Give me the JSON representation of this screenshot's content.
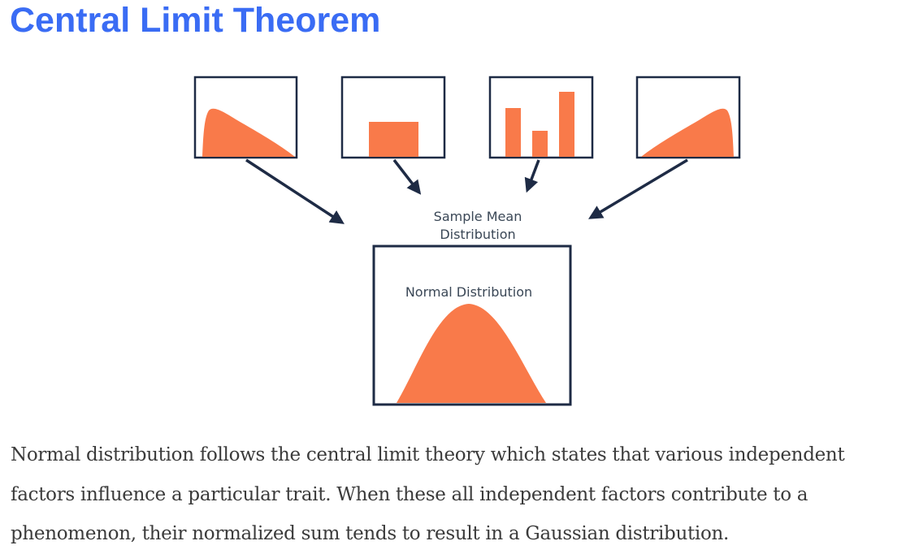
{
  "title": "Central Limit Theorem",
  "diagram": {
    "center_label": [
      "Sample Mean",
      "Distribution"
    ],
    "result_label": "Normal Distribution",
    "source_distributions": [
      "right-skewed",
      "uniform",
      "bar-distribution",
      "left-skewed"
    ],
    "colors": {
      "fill": "#F97A4A",
      "stroke": "#1E2B45",
      "label": "#3A4756"
    }
  },
  "paragraph": "Normal distribution follows the central limit theory which states that various independent factors influence a particular trait. When these all independent factors contribute to a phenomenon, their normalized sum tends to result in a Gaussian distribution.",
  "colors": {
    "title": "#3A6CF4",
    "body_text": "#3B3B3B"
  }
}
